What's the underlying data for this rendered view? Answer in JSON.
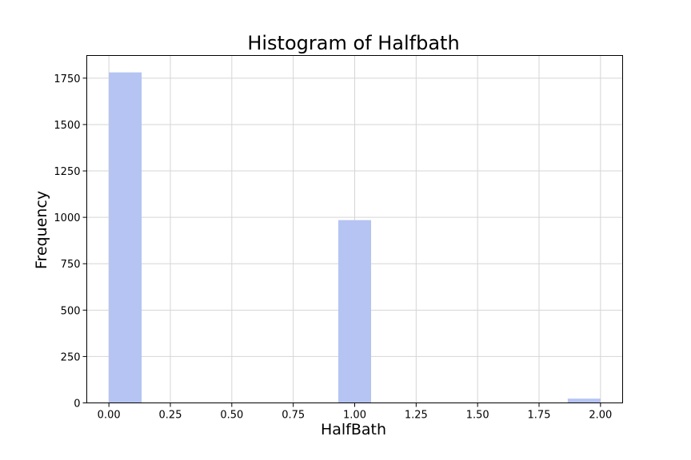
{
  "chart_data": {
    "type": "bar",
    "title": "Histogram of Halfbath",
    "xlabel": "HalfBath",
    "ylabel": "Frequency",
    "xlim": [
      -0.09,
      2.09
    ],
    "ylim": [
      0,
      1872
    ],
    "xticks": [
      0.0,
      0.25,
      0.5,
      0.75,
      1.0,
      1.25,
      1.5,
      1.75,
      2.0
    ],
    "xtick_labels": [
      "0.00",
      "0.25",
      "0.50",
      "0.75",
      "1.00",
      "1.25",
      "1.50",
      "1.75",
      "2.00"
    ],
    "yticks": [
      0,
      250,
      500,
      750,
      1000,
      1250,
      1500,
      1750
    ],
    "ytick_labels": [
      "0",
      "250",
      "500",
      "750",
      "1000",
      "1250",
      "1500",
      "1750"
    ],
    "grid": true,
    "bins": [
      {
        "x0": 0.0,
        "x1": 0.1333,
        "value": 1781
      },
      {
        "x0": 0.9333,
        "x1": 1.0667,
        "value": 985
      },
      {
        "x0": 1.8667,
        "x1": 2.0,
        "value": 23
      }
    ],
    "colors": {
      "bar": "#b5c4f2"
    }
  }
}
